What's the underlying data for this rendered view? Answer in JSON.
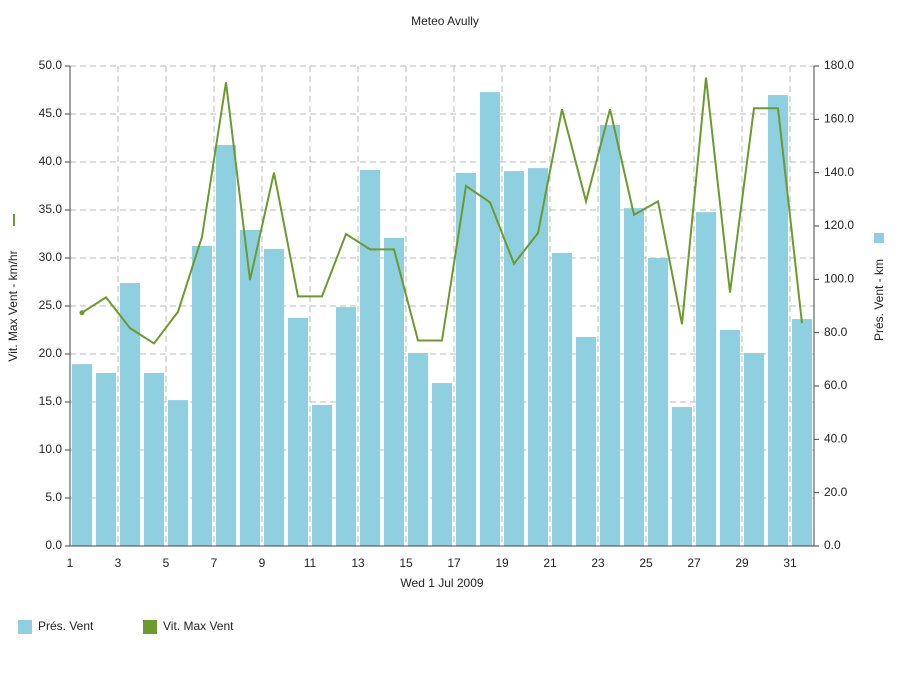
{
  "chart_data": {
    "type": "bar_line",
    "title": "Meteo  Avully",
    "x_label": "Wed 1 Jul 2009",
    "y_label": "Vit. Max Vent - km/hr",
    "y2_label": "Prés. Vent - km",
    "categories": [
      "1",
      null,
      "3",
      null,
      "5",
      null,
      "7",
      null,
      "9",
      null,
      "11",
      null,
      "13",
      null,
      "15",
      null,
      "17",
      null,
      "19",
      null,
      "21",
      null,
      "23",
      null,
      "25",
      null,
      "27",
      null,
      "29",
      null,
      "31"
    ],
    "series": [
      {
        "name": "Prés. Vent",
        "type": "bar",
        "axis": "y2",
        "color": "#8ecfe0",
        "values": [
          68.2,
          64.9,
          98.6,
          64.9,
          54.7,
          112.5,
          150.4,
          118.5,
          111.4,
          85.5,
          52.9,
          89.6,
          141.0,
          115.5,
          72.4,
          61.1,
          139.9,
          170.2,
          140.6,
          141.7,
          109.9,
          78.4,
          157.9,
          126.7,
          108.0,
          52.1,
          125.2,
          81.0,
          72.4,
          169.1,
          85.1
        ]
      },
      {
        "name": "Vit. Max Vent",
        "type": "line",
        "axis": "y",
        "color": "#6b9a2e",
        "values": [
          24.3,
          25.9,
          22.7,
          21.1,
          24.4,
          32.2,
          48.3,
          27.7,
          38.9,
          26.0,
          26.0,
          32.5,
          30.9,
          30.9,
          21.4,
          21.4,
          37.5,
          35.8,
          29.4,
          32.6,
          45.5,
          35.9,
          45.5,
          34.5,
          35.9,
          23.1,
          48.8,
          26.4,
          45.6,
          45.6,
          23.2
        ]
      }
    ],
    "ylim": [
      0,
      50
    ],
    "yticks": [
      {
        "value": 0,
        "label": "0.0"
      },
      {
        "value": 5,
        "label": "5.0"
      },
      {
        "value": 10,
        "label": "10.0"
      },
      {
        "value": 15,
        "label": "15.0"
      },
      {
        "value": 20,
        "label": "20.0"
      },
      {
        "value": 25,
        "label": "25.0"
      },
      {
        "value": 30,
        "label": "30.0"
      },
      {
        "value": 35,
        "label": "35.0"
      },
      {
        "value": 40,
        "label": "40.0"
      },
      {
        "value": 45,
        "label": "45.0"
      },
      {
        "value": 50,
        "label": "50.0"
      }
    ],
    "y2lim": [
      0,
      180
    ],
    "y2ticks": [
      {
        "value": 0,
        "label": "0.0"
      },
      {
        "value": 20,
        "label": "20.0"
      },
      {
        "value": 40,
        "label": "40.0"
      },
      {
        "value": 60,
        "label": "60.0"
      },
      {
        "value": 80,
        "label": "80.0"
      },
      {
        "value": 100,
        "label": "100.0"
      },
      {
        "value": 120,
        "label": "120.0"
      },
      {
        "value": 140,
        "label": "140.0"
      },
      {
        "value": 160,
        "label": "160.0"
      },
      {
        "value": 180,
        "label": "180.0"
      }
    ],
    "grid": true,
    "legend": "bottom-left"
  }
}
